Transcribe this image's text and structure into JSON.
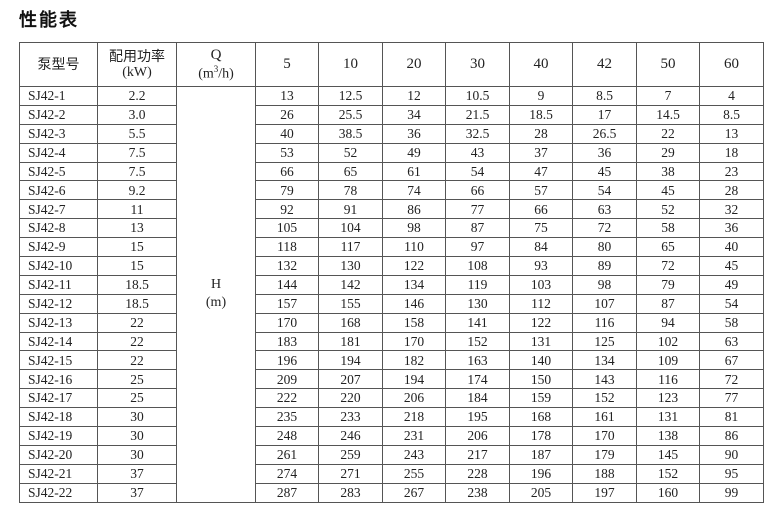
{
  "title": "性能表",
  "header": {
    "model": "泵型号",
    "power": "配用功率",
    "power_unit": "(kW)",
    "flow": "Q",
    "flow_unit_pre": "(m",
    "flow_unit_sup": "3",
    "flow_unit_post": "/h)",
    "flows": [
      "5",
      "10",
      "20",
      "30",
      "40",
      "42",
      "50",
      "60"
    ]
  },
  "head_label": "H",
  "head_unit": "(m)",
  "rows": [
    {
      "model": "SJ42-1",
      "power": "2.2",
      "h": [
        "13",
        "12.5",
        "12",
        "10.5",
        "9",
        "8.5",
        "7",
        "4"
      ]
    },
    {
      "model": "SJ42-2",
      "power": "3.0",
      "h": [
        "26",
        "25.5",
        "34",
        "21.5",
        "18.5",
        "17",
        "14.5",
        "8.5"
      ]
    },
    {
      "model": "SJ42-3",
      "power": "5.5",
      "h": [
        "40",
        "38.5",
        "36",
        "32.5",
        "28",
        "26.5",
        "22",
        "13"
      ]
    },
    {
      "model": "SJ42-4",
      "power": "7.5",
      "h": [
        "53",
        "52",
        "49",
        "43",
        "37",
        "36",
        "29",
        "18"
      ]
    },
    {
      "model": "SJ42-5",
      "power": "7.5",
      "h": [
        "66",
        "65",
        "61",
        "54",
        "47",
        "45",
        "38",
        "23"
      ]
    },
    {
      "model": "SJ42-6",
      "power": "9.2",
      "h": [
        "79",
        "78",
        "74",
        "66",
        "57",
        "54",
        "45",
        "28"
      ]
    },
    {
      "model": "SJ42-7",
      "power": "11",
      "h": [
        "92",
        "91",
        "86",
        "77",
        "66",
        "63",
        "52",
        "32"
      ]
    },
    {
      "model": "SJ42-8",
      "power": "13",
      "h": [
        "105",
        "104",
        "98",
        "87",
        "75",
        "72",
        "58",
        "36"
      ]
    },
    {
      "model": "SJ42-9",
      "power": "15",
      "h": [
        "118",
        "117",
        "110",
        "97",
        "84",
        "80",
        "65",
        "40"
      ]
    },
    {
      "model": "SJ42-10",
      "power": "15",
      "h": [
        "132",
        "130",
        "122",
        "108",
        "93",
        "89",
        "72",
        "45"
      ]
    },
    {
      "model": "SJ42-11",
      "power": "18.5",
      "h": [
        "144",
        "142",
        "134",
        "119",
        "103",
        "98",
        "79",
        "49"
      ]
    },
    {
      "model": "SJ42-12",
      "power": "18.5",
      "h": [
        "157",
        "155",
        "146",
        "130",
        "112",
        "107",
        "87",
        "54"
      ]
    },
    {
      "model": "SJ42-13",
      "power": "22",
      "h": [
        "170",
        "168",
        "158",
        "141",
        "122",
        "116",
        "94",
        "58"
      ]
    },
    {
      "model": "SJ42-14",
      "power": "22",
      "h": [
        "183",
        "181",
        "170",
        "152",
        "131",
        "125",
        "102",
        "63"
      ]
    },
    {
      "model": "SJ42-15",
      "power": "22",
      "h": [
        "196",
        "194",
        "182",
        "163",
        "140",
        "134",
        "109",
        "67"
      ]
    },
    {
      "model": "SJ42-16",
      "power": "25",
      "h": [
        "209",
        "207",
        "194",
        "174",
        "150",
        "143",
        "116",
        "72"
      ]
    },
    {
      "model": "SJ42-17",
      "power": "25",
      "h": [
        "222",
        "220",
        "206",
        "184",
        "159",
        "152",
        "123",
        "77"
      ]
    },
    {
      "model": "SJ42-18",
      "power": "30",
      "h": [
        "235",
        "233",
        "218",
        "195",
        "168",
        "161",
        "131",
        "81"
      ]
    },
    {
      "model": "SJ42-19",
      "power": "30",
      "h": [
        "248",
        "246",
        "231",
        "206",
        "178",
        "170",
        "138",
        "86"
      ]
    },
    {
      "model": "SJ42-20",
      "power": "30",
      "h": [
        "261",
        "259",
        "243",
        "217",
        "187",
        "179",
        "145",
        "90"
      ]
    },
    {
      "model": "SJ42-21",
      "power": "37",
      "h": [
        "274",
        "271",
        "255",
        "228",
        "196",
        "188",
        "152",
        "95"
      ]
    },
    {
      "model": "SJ42-22",
      "power": "37",
      "h": [
        "287",
        "283",
        "267",
        "238",
        "205",
        "197",
        "160",
        "99"
      ]
    }
  ]
}
